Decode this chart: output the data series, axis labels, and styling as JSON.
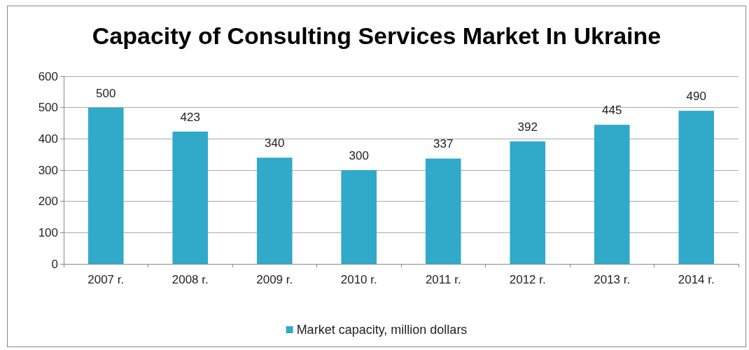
{
  "chart_data": {
    "type": "bar",
    "title": "Capacity of Consulting Services Market In Ukraine",
    "categories": [
      "2007 r.",
      "2008 r.",
      "2009 r.",
      "2010 r.",
      "2011 r.",
      "2012 r.",
      "2013 r.",
      "2014 r."
    ],
    "series": [
      {
        "name": "Market capacity, million dollars",
        "color": "#31a9c9",
        "values": [
          500,
          423,
          340,
          300,
          337,
          392,
          445,
          490
        ]
      }
    ],
    "ylim": [
      0,
      600
    ],
    "yticks": [
      0,
      100,
      200,
      300,
      400,
      500,
      600
    ],
    "grid": "y",
    "legend": "bottom",
    "data_labels": true
  }
}
